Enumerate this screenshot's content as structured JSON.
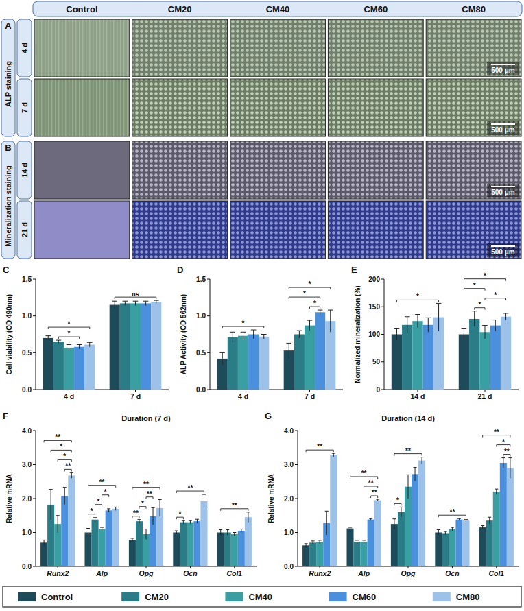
{
  "micrographs": {
    "columns": [
      "Control",
      "CM20",
      "CM40",
      "CM60",
      "CM80"
    ],
    "panels": [
      {
        "letter": "A",
        "label": "ALP staining",
        "rows": [
          "4 d",
          "7 d"
        ]
      },
      {
        "letter": "B",
        "label": "Mineralization staining",
        "rows": [
          "14 d",
          "21 d"
        ]
      }
    ],
    "scale_bar": "500 μm"
  },
  "chart_data": [
    {
      "panel": "C",
      "type": "bar",
      "y_label": "Cell viability (OD 490nm)",
      "categories": [
        "4 d",
        "7 d"
      ],
      "series": [
        {
          "name": "Control",
          "color": "#1e4b5a",
          "values": [
            0.7,
            1.15
          ],
          "errors": [
            0.03,
            0.05
          ]
        },
        {
          "name": "CM20",
          "color": "#2a7c86",
          "values": [
            0.65,
            1.17
          ],
          "errors": [
            0.02,
            0.03
          ]
        },
        {
          "name": "CM40",
          "color": "#3a9fa3",
          "values": [
            0.57,
            1.17
          ],
          "errors": [
            0.04,
            0.03
          ]
        },
        {
          "name": "CM60",
          "color": "#4a90dc",
          "values": [
            0.58,
            1.17
          ],
          "errors": [
            0.03,
            0.03
          ]
        },
        {
          "name": "CM80",
          "color": "#9cc2ea",
          "values": [
            0.61,
            1.19
          ],
          "errors": [
            0.03,
            0.02
          ]
        }
      ],
      "ylim": [
        0,
        1.5
      ],
      "yticks": [
        {
          "value": 0,
          "label": "0.0"
        },
        {
          "value": 0.5,
          "label": "0.5"
        },
        {
          "value": 1,
          "label": "1.0"
        },
        {
          "value": 1.5,
          "label": "1.5"
        }
      ],
      "grid": false,
      "legend": "bottom",
      "annotations": [
        {
          "text": "*",
          "category": 0,
          "from": 1,
          "to": 3
        },
        {
          "text": "*",
          "category": 0,
          "from": 0,
          "to": 4
        },
        {
          "text": "ns",
          "category": 1,
          "from": 0,
          "to": 4
        }
      ]
    },
    {
      "panel": "D",
      "type": "bar",
      "y_label": "ALP Activity (OD 562nm)",
      "categories": [
        "4 d",
        "7 d"
      ],
      "series": [
        {
          "name": "Control",
          "color": "#1e4b5a",
          "values": [
            0.42,
            0.53
          ],
          "errors": [
            0.08,
            0.1
          ]
        },
        {
          "name": "CM20",
          "color": "#2a7c86",
          "values": [
            0.71,
            0.75
          ],
          "errors": [
            0.07,
            0.05
          ]
        },
        {
          "name": "CM40",
          "color": "#3a9fa3",
          "values": [
            0.73,
            0.87
          ],
          "errors": [
            0.05,
            0.07
          ]
        },
        {
          "name": "CM60",
          "color": "#4a90dc",
          "values": [
            0.75,
            1.05
          ],
          "errors": [
            0.06,
            0.03
          ]
        },
        {
          "name": "CM80",
          "color": "#9cc2ea",
          "values": [
            0.72,
            0.93
          ],
          "errors": [
            0.03,
            0.15
          ]
        }
      ],
      "ylim": [
        0,
        1.5
      ],
      "yticks": [
        {
          "value": 0,
          "label": "0.0"
        },
        {
          "value": 0.5,
          "label": "0.5"
        },
        {
          "value": 1,
          "label": "1.0"
        },
        {
          "value": 1.5,
          "label": "1.5"
        }
      ],
      "grid": false,
      "annotations": [
        {
          "text": "*",
          "category": 0,
          "from": 0,
          "to": 4
        },
        {
          "text": "*",
          "category": 1,
          "from": 2,
          "to": 3
        },
        {
          "text": "*",
          "category": 1,
          "from": 0,
          "to": 3
        },
        {
          "text": "*",
          "category": 1,
          "from": 0,
          "to": 4
        }
      ]
    },
    {
      "panel": "E",
      "type": "bar",
      "y_label": "Normalized mineralization (%)",
      "categories": [
        "14 d",
        "21 d"
      ],
      "series": [
        {
          "name": "Control",
          "color": "#1e4b5a",
          "values": [
            100,
            100
          ],
          "errors": [
            10,
            10
          ]
        },
        {
          "name": "CM20",
          "color": "#2a7c86",
          "values": [
            117,
            128
          ],
          "errors": [
            15,
            14
          ]
        },
        {
          "name": "CM40",
          "color": "#3a9fa3",
          "values": [
            124,
            104
          ],
          "errors": [
            12,
            12
          ]
        },
        {
          "name": "CM60",
          "color": "#4a90dc",
          "values": [
            117,
            116
          ],
          "errors": [
            13,
            10
          ]
        },
        {
          "name": "CM80",
          "color": "#9cc2ea",
          "values": [
            131,
            132
          ],
          "errors": [
            25,
            6
          ]
        }
      ],
      "ylim": [
        0,
        200
      ],
      "yticks": [
        0,
        50,
        100,
        150,
        200
      ],
      "grid": false,
      "annotations": [
        {
          "text": "*",
          "category": 0,
          "from": 0,
          "to": 4
        },
        {
          "text": "*",
          "category": 1,
          "from": 1,
          "to": 2
        },
        {
          "text": "*",
          "category": 1,
          "from": 2,
          "to": 4
        },
        {
          "text": "*",
          "category": 1,
          "from": 0,
          "to": 2
        },
        {
          "text": "*",
          "category": 1,
          "from": 0,
          "to": 4
        }
      ]
    },
    {
      "panel": "F",
      "type": "bar",
      "title": "Duration (7 d)",
      "y_label": "Relative mRNA",
      "categories": [
        "Runx2",
        "Alp",
        "Opg",
        "Ocn",
        "Col1"
      ],
      "series": [
        {
          "name": "Control",
          "color": "#1e4b5a",
          "values": [
            0.7,
            1.0,
            0.78,
            1.0,
            1.0
          ],
          "errors": [
            0.08,
            0.12,
            0.05,
            0.05,
            0.08
          ]
        },
        {
          "name": "CM20",
          "color": "#2a7c86",
          "values": [
            1.82,
            1.38,
            1.33,
            1.3,
            1.0
          ],
          "errors": [
            0.45,
            0.06,
            0.05,
            0.05,
            0.08
          ]
        },
        {
          "name": "CM40",
          "color": "#3a9fa3",
          "values": [
            1.25,
            1.1,
            0.95,
            1.3,
            0.95
          ],
          "errors": [
            0.25,
            0.05,
            0.15,
            0.05,
            0.05
          ]
        },
        {
          "name": "CM60",
          "color": "#4a90dc",
          "values": [
            2.08,
            1.65,
            1.48,
            1.33,
            1.05
          ],
          "errors": [
            0.25,
            0.05,
            0.25,
            0.06,
            0.05
          ]
        },
        {
          "name": "CM80",
          "color": "#9cc2ea",
          "values": [
            2.68,
            1.7,
            1.72,
            1.92,
            1.45
          ],
          "errors": [
            0.08,
            0.05,
            0.25,
            0.2,
            0.15
          ]
        }
      ],
      "ylim": [
        0,
        4
      ],
      "yticks": [
        {
          "value": 0,
          "label": "0.0"
        },
        {
          "value": 1,
          "label": "1.0"
        },
        {
          "value": 2,
          "label": "2.0"
        },
        {
          "value": 3,
          "label": "3.0"
        },
        {
          "value": 4,
          "label": "4.0"
        }
      ],
      "grid": false,
      "annotations": [
        {
          "text": "**",
          "category": 0,
          "from": 3,
          "to": 4
        },
        {
          "text": "*",
          "category": 0,
          "from": 2,
          "to": 4
        },
        {
          "text": "*",
          "category": 0,
          "from": 1,
          "to": 4
        },
        {
          "text": "**",
          "category": 0,
          "from": 0,
          "to": 4
        },
        {
          "text": "*",
          "category": 1,
          "from": 0,
          "to": 1
        },
        {
          "text": "*",
          "category": 1,
          "from": 1,
          "to": 2
        },
        {
          "text": "*",
          "category": 1,
          "from": 2,
          "to": 3
        },
        {
          "text": "**",
          "category": 1,
          "from": 0,
          "to": 4
        },
        {
          "text": "**",
          "category": 2,
          "from": 0,
          "to": 1
        },
        {
          "text": "*",
          "category": 2,
          "from": 1,
          "to": 2
        },
        {
          "text": "**",
          "category": 2,
          "from": 2,
          "to": 3
        },
        {
          "text": "**",
          "category": 2,
          "from": 0,
          "to": 4
        },
        {
          "text": "*",
          "category": 3,
          "from": 0,
          "to": 1
        },
        {
          "text": "**",
          "category": 3,
          "from": 0,
          "to": 4
        },
        {
          "text": "**",
          "category": 4,
          "from": 0,
          "to": 4
        }
      ]
    },
    {
      "panel": "G",
      "type": "bar",
      "title": "Duration (14 d)",
      "y_label": "Relative mRNA",
      "categories": [
        "Runx2",
        "Alp",
        "Opg",
        "Ocn",
        "Col1"
      ],
      "series": [
        {
          "name": "Control",
          "color": "#1e4b5a",
          "values": [
            0.62,
            1.12,
            1.25,
            1.0,
            1.15
          ],
          "errors": [
            0.05,
            0.03,
            0.15,
            0.08,
            0.05
          ]
        },
        {
          "name": "CM20",
          "color": "#2a7c86",
          "values": [
            0.7,
            0.72,
            1.6,
            0.98,
            1.35
          ],
          "errors": [
            0.05,
            0.05,
            0.15,
            0.05,
            0.1
          ]
        },
        {
          "name": "CM40",
          "color": "#3a9fa3",
          "values": [
            0.72,
            0.72,
            2.35,
            1.1,
            2.2
          ],
          "errors": [
            0.05,
            0.05,
            0.35,
            0.05,
            0.08
          ]
        },
        {
          "name": "CM60",
          "color": "#4a90dc",
          "values": [
            1.28,
            1.38,
            2.72,
            1.38,
            3.05
          ],
          "errors": [
            0.35,
            0.03,
            0.2,
            0.03,
            0.15
          ]
        },
        {
          "name": "CM80",
          "color": "#9cc2ea",
          "values": [
            3.28,
            1.95,
            3.12,
            1.35,
            2.9
          ],
          "errors": [
            0.05,
            0.03,
            0.1,
            0.03,
            0.3
          ]
        }
      ],
      "ylim": [
        0,
        4
      ],
      "yticks": [
        {
          "value": 0,
          "label": "0.0"
        },
        {
          "value": 1,
          "label": "1.0"
        },
        {
          "value": 2,
          "label": "2.0"
        },
        {
          "value": 3,
          "label": "3.0"
        },
        {
          "value": 4,
          "label": "4.0"
        }
      ],
      "grid": false,
      "annotations": [
        {
          "text": "**",
          "category": 0,
          "from": 0,
          "to": 4
        },
        {
          "text": "**",
          "category": 1,
          "from": 3,
          "to": 4
        },
        {
          "text": "**",
          "category": 1,
          "from": 2,
          "to": 4
        },
        {
          "text": "**",
          "category": 1,
          "from": 0,
          "to": 4
        },
        {
          "text": "*",
          "category": 2,
          "from": 0,
          "to": 1
        },
        {
          "text": "**",
          "category": 2,
          "from": 0,
          "to": 4
        },
        {
          "text": "**",
          "category": 3,
          "from": 0,
          "to": 4
        },
        {
          "text": "**",
          "category": 4,
          "from": 3,
          "to": 4
        },
        {
          "text": "*",
          "category": 4,
          "from": 2,
          "to": 4
        },
        {
          "text": "**",
          "category": 4,
          "from": 0,
          "to": 4
        }
      ]
    }
  ]
}
